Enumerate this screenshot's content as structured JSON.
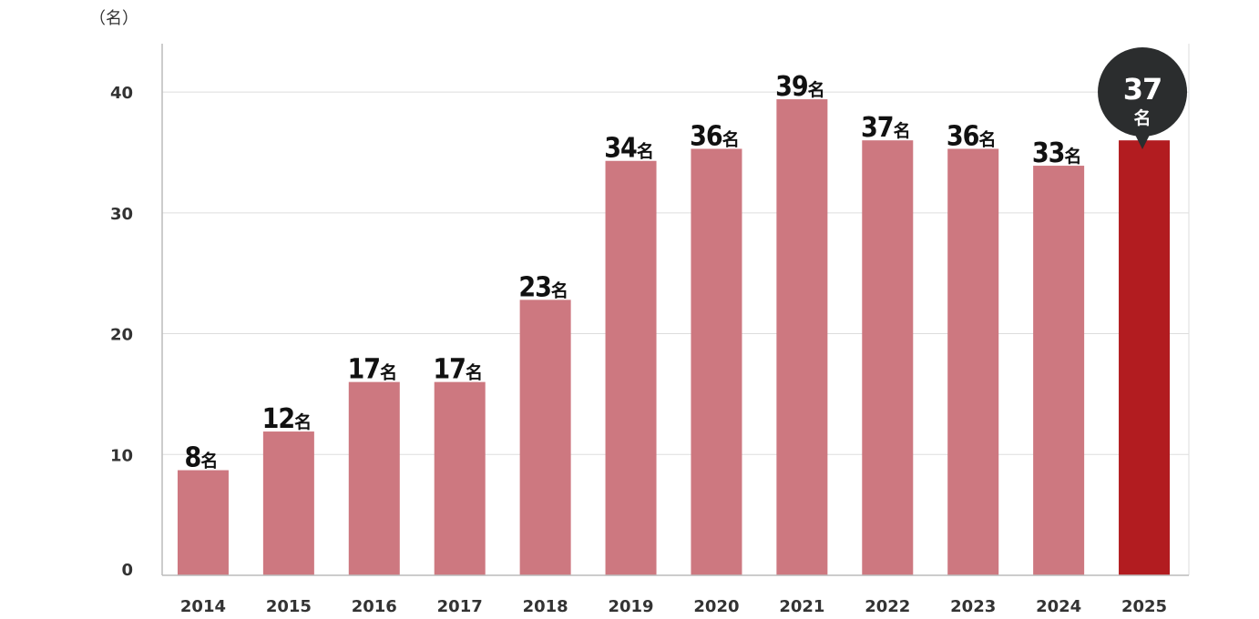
{
  "chart_data": {
    "type": "bar",
    "y_unit_label": "（名）",
    "value_suffix": "名",
    "categories": [
      "2014",
      "2015",
      "2016",
      "2017",
      "2018",
      "2019",
      "2020",
      "2021",
      "2022",
      "2023",
      "2024",
      "2025"
    ],
    "values": [
      8,
      12,
      17,
      17,
      23,
      34,
      36,
      39,
      37,
      36,
      33,
      37
    ],
    "bar_heights_read": [
      8.7,
      11.9,
      16,
      16,
      22.8,
      34.3,
      35.3,
      39.4,
      36,
      35.3,
      33.9,
      36
    ],
    "yticks": [
      0,
      10,
      20,
      30,
      40
    ],
    "ylim": [
      0,
      44
    ],
    "grid": true,
    "highlight_category": "2025",
    "colors": {
      "bar": "#cd7880",
      "highlight_bar": "#b21c20",
      "bubble": "#2b2d2e",
      "grid": "#dddddd",
      "axis": "#bbbbbb"
    }
  }
}
